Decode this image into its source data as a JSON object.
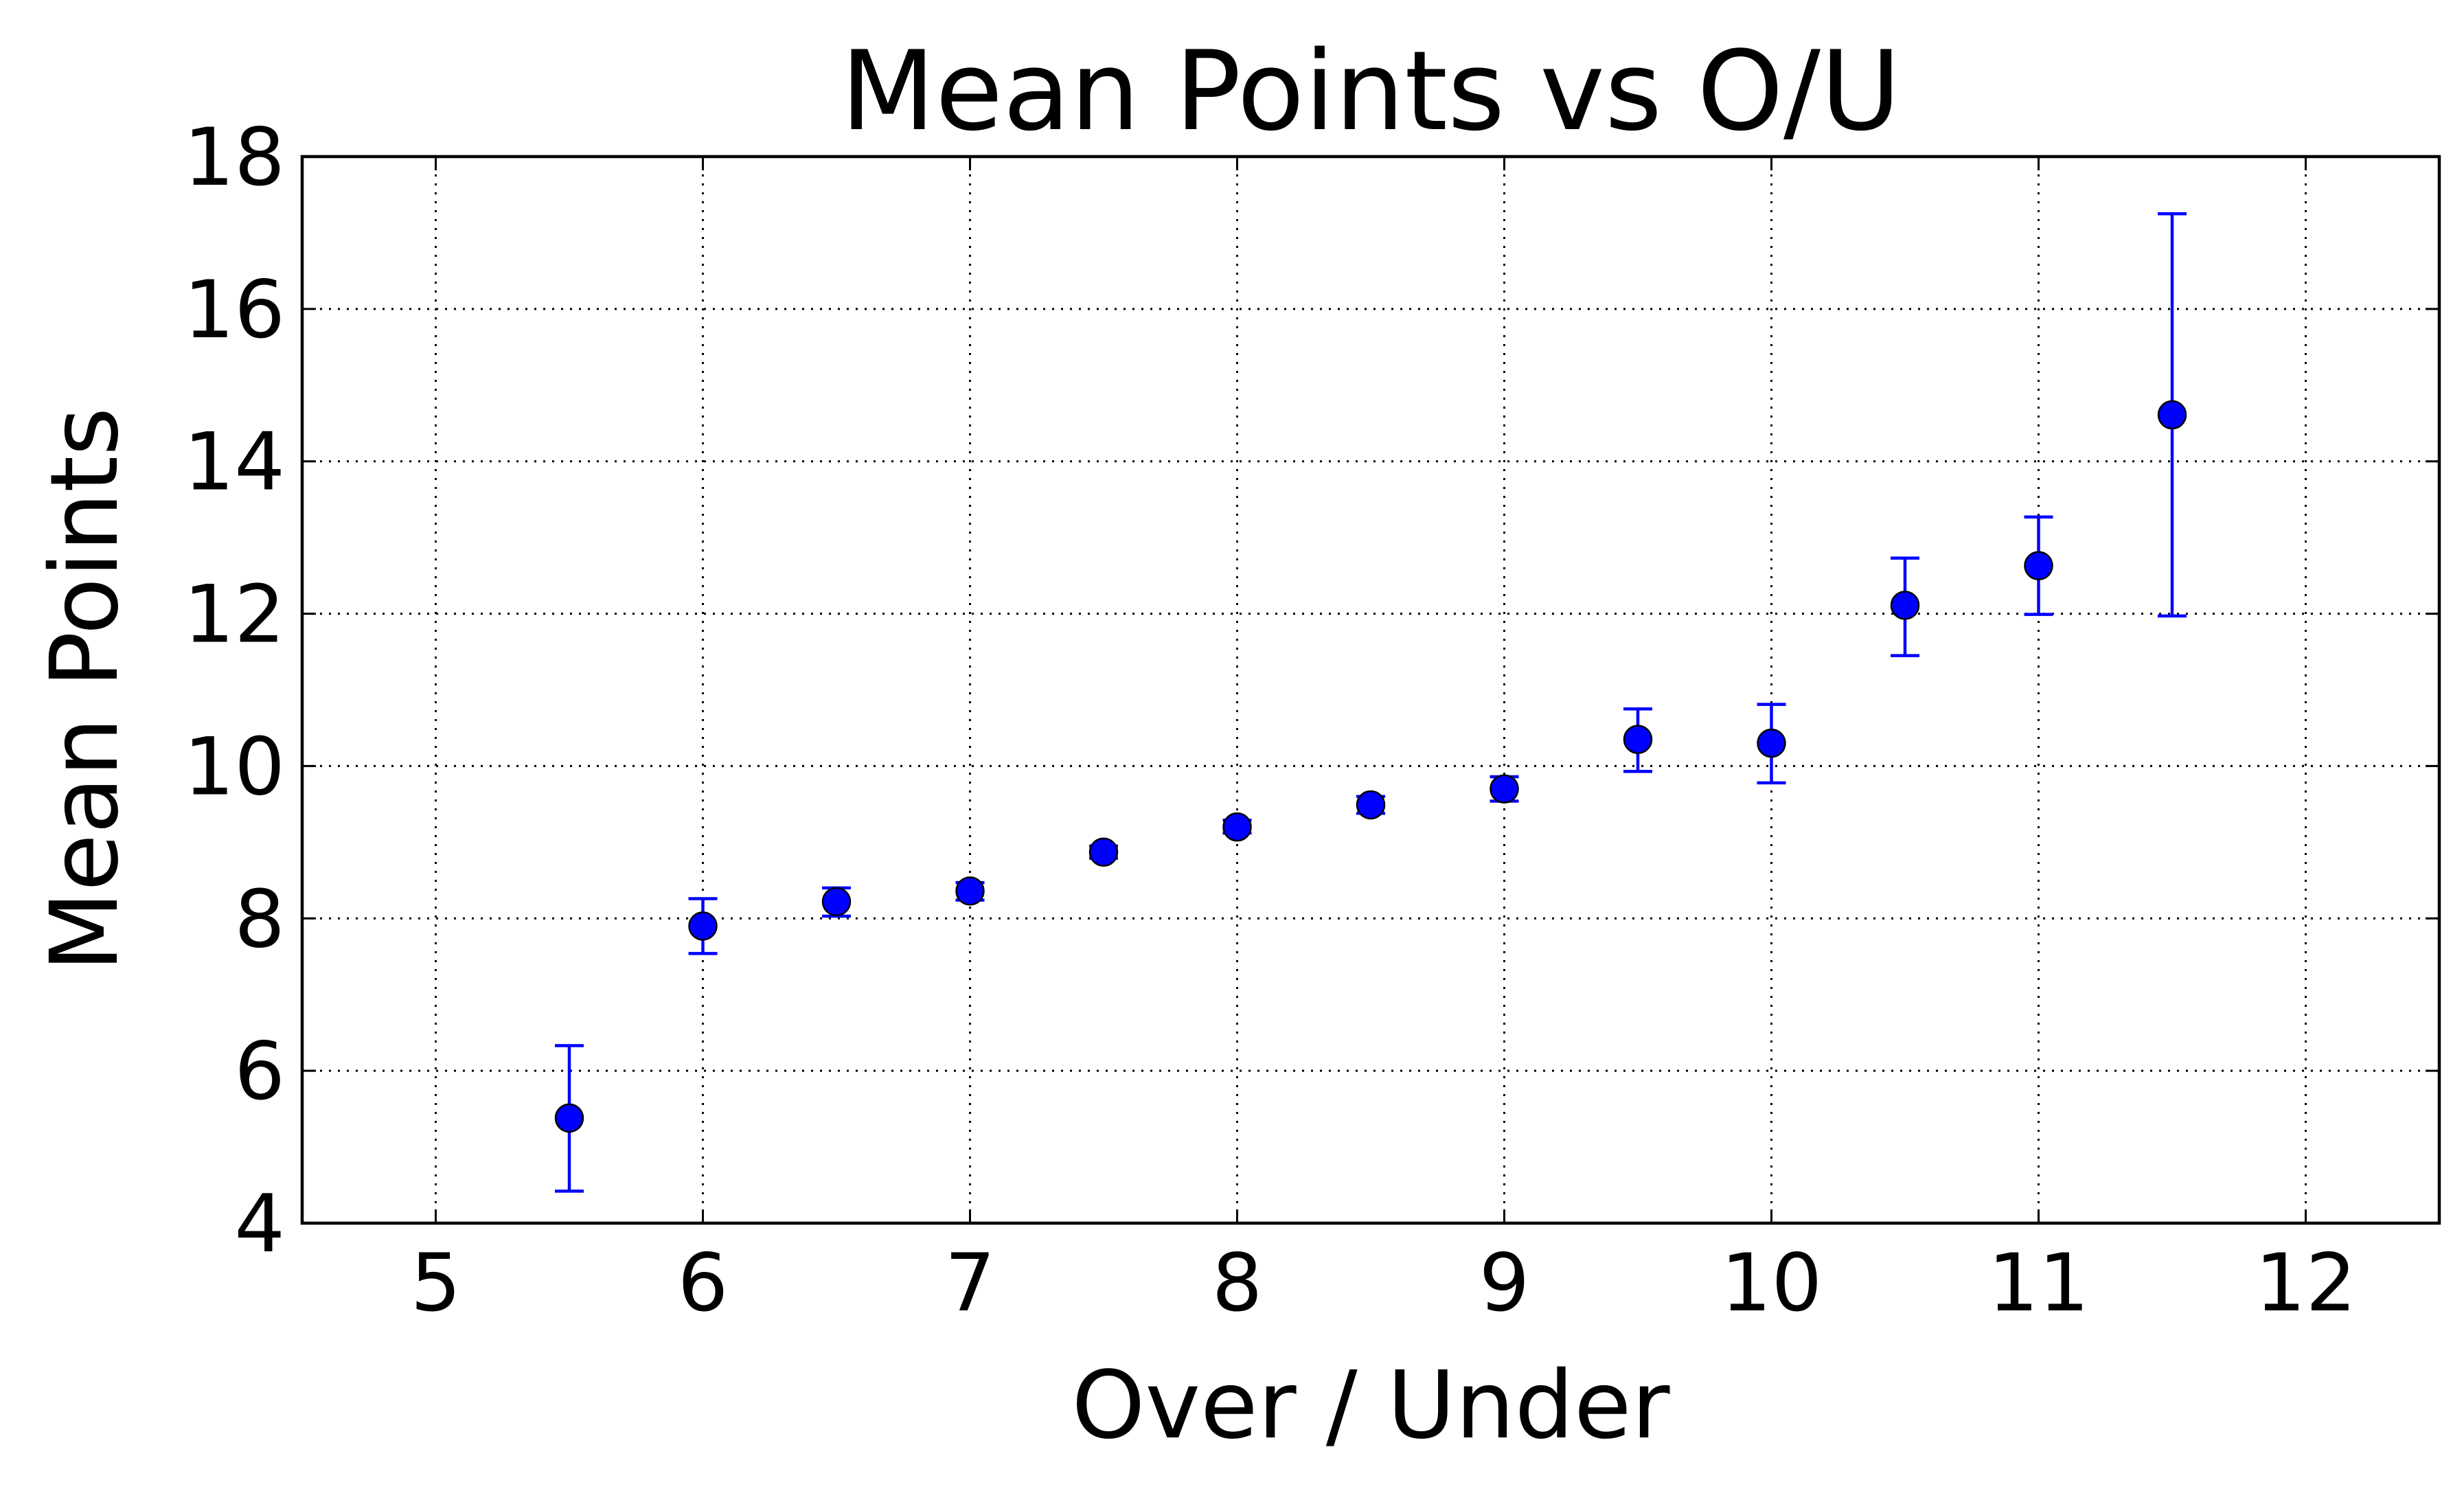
{
  "chart_data": {
    "type": "scatter",
    "title": "Mean Points vs O/U",
    "xlabel": "Over / Under",
    "ylabel": "Mean Points",
    "xlim": [
      4.5,
      12.5
    ],
    "ylim": [
      4,
      18
    ],
    "xticks": [
      5,
      6,
      7,
      8,
      9,
      10,
      11,
      12
    ],
    "xtick_labels": [
      "5",
      "6",
      "7",
      "8",
      "9",
      "10",
      "11",
      "12"
    ],
    "yticks": [
      4,
      6,
      8,
      10,
      12,
      14,
      16,
      18
    ],
    "ytick_labels": [
      "4",
      "6",
      "8",
      "10",
      "12",
      "14",
      "16",
      "18"
    ],
    "grid": true,
    "grid_style": "dotted",
    "series": [
      {
        "color": "#0000ff",
        "marker": "circle",
        "error_bars": true,
        "points": [
          {
            "x": 5.5,
            "y": 5.38,
            "err_low": 4.42,
            "err_high": 6.33
          },
          {
            "x": 6.0,
            "y": 7.9,
            "err_low": 7.54,
            "err_high": 8.26
          },
          {
            "x": 6.5,
            "y": 8.22,
            "err_low": 8.03,
            "err_high": 8.4
          },
          {
            "x": 7.0,
            "y": 8.36,
            "err_low": 8.24,
            "err_high": 8.47
          },
          {
            "x": 7.5,
            "y": 8.87,
            "err_low": 8.79,
            "err_high": 8.95
          },
          {
            "x": 8.0,
            "y": 9.2,
            "err_low": 9.12,
            "err_high": 9.29
          },
          {
            "x": 8.5,
            "y": 9.49,
            "err_low": 9.38,
            "err_high": 9.6
          },
          {
            "x": 9.0,
            "y": 9.7,
            "err_low": 9.54,
            "err_high": 9.86
          },
          {
            "x": 9.5,
            "y": 10.35,
            "err_low": 9.93,
            "err_high": 10.75
          },
          {
            "x": 10.0,
            "y": 10.3,
            "err_low": 9.78,
            "err_high": 10.81
          },
          {
            "x": 10.5,
            "y": 12.11,
            "err_low": 11.45,
            "err_high": 12.73
          },
          {
            "x": 11.0,
            "y": 12.63,
            "err_low": 11.99,
            "err_high": 13.27
          },
          {
            "x": 11.5,
            "y": 14.61,
            "err_low": 11.97,
            "err_high": 17.25
          }
        ]
      }
    ]
  }
}
